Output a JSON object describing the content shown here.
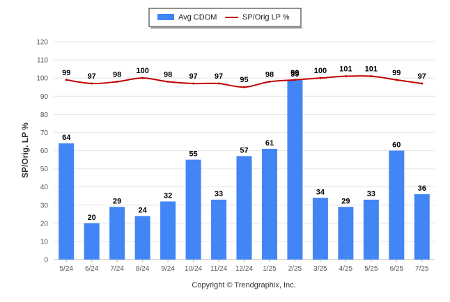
{
  "chart_data": {
    "type": "bar",
    "categories": [
      "5/24",
      "6/24",
      "7/24",
      "8/24",
      "9/24",
      "10/24",
      "11/24",
      "12/24",
      "1/25",
      "2/25",
      "3/25",
      "4/25",
      "5/25",
      "6/25",
      "7/25"
    ],
    "series": [
      {
        "name": "Avg CDOM",
        "type": "bar",
        "color": "#4285f4",
        "values": [
          64,
          20,
          29,
          24,
          32,
          55,
          33,
          57,
          61,
          99,
          34,
          29,
          33,
          60,
          36
        ]
      },
      {
        "name": "SP/Orig LP %",
        "type": "line",
        "color": "#c00000",
        "values": [
          99,
          97,
          98,
          100,
          98,
          97,
          97,
          95,
          98,
          99,
          100,
          101,
          101,
          99,
          97
        ]
      }
    ],
    "ylabel": "SP/Orig. LP %",
    "ylim": [
      0,
      120
    ],
    "yticks": [
      0,
      10,
      20,
      30,
      40,
      50,
      60,
      70,
      80,
      90,
      100,
      110,
      120
    ],
    "grid": true,
    "legend_position": "top-center"
  },
  "footer": {
    "copyright": "Copyright © Trendgraphix, Inc."
  }
}
